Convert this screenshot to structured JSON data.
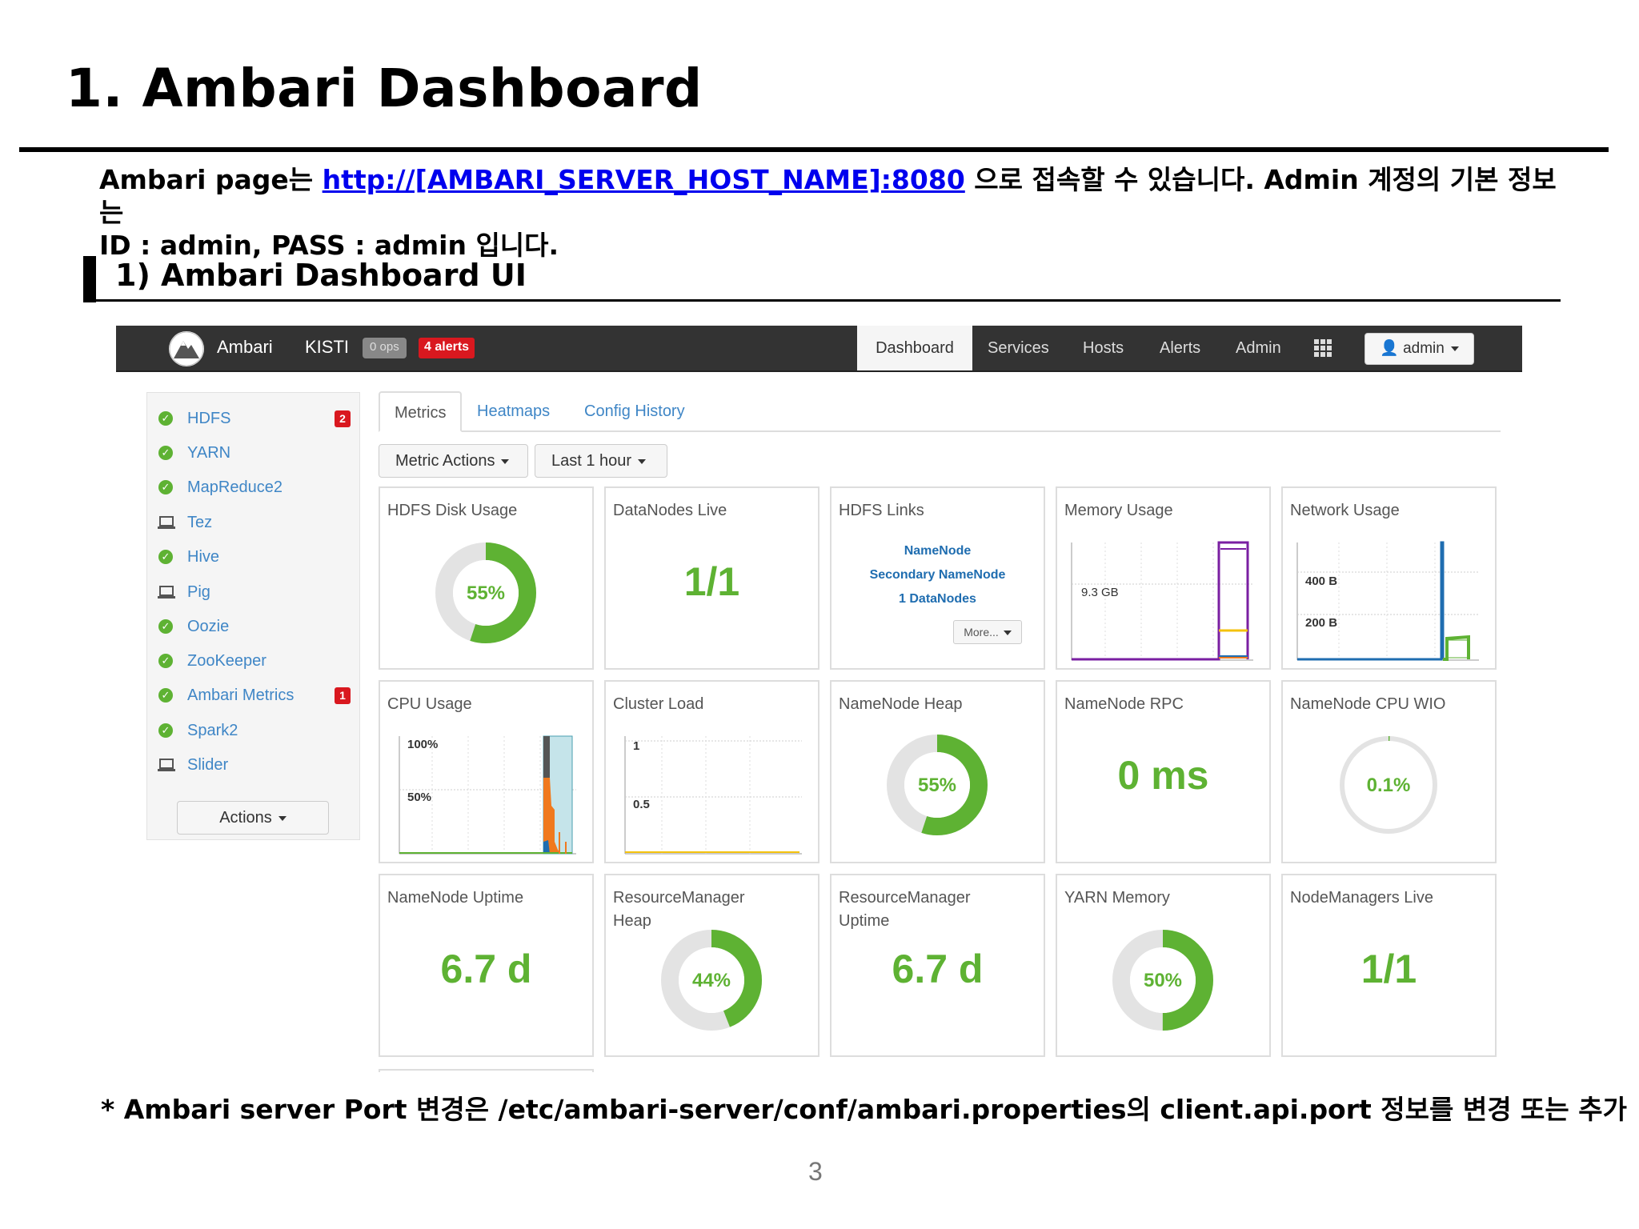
{
  "slide": {
    "title": "1. Ambari Dashboard",
    "intro_prefix": "Ambari page는 ",
    "intro_link": "http://[AMBARI_SERVER_HOST_NAME]:8080",
    "intro_suffix": " 으로 접속할 수 있습니다. Admin 계정의 기본 정보는",
    "intro_line2": "ID : admin, PASS : admin 입니다.",
    "section_title": "1) Ambari Dashboard UI",
    "footnote": "* Ambari server Port 변경은 /etc/ambari-server/conf/ambari.properties의 client.api.port 정보를 변경 또는 추가",
    "page_number": "3"
  },
  "navbar": {
    "brand": "Ambari",
    "cluster": "KISTI",
    "ops_badge": "0 ops",
    "alerts_badge": "4 alerts",
    "tabs": [
      "Dashboard",
      "Services",
      "Hosts",
      "Alerts",
      "Admin"
    ],
    "active_tab": "Dashboard",
    "user": "admin"
  },
  "sidebar": {
    "services": [
      {
        "name": "HDFS",
        "status": "ok",
        "alerts": "2"
      },
      {
        "name": "YARN",
        "status": "ok"
      },
      {
        "name": "MapReduce2",
        "status": "ok"
      },
      {
        "name": "Tez",
        "status": "client"
      },
      {
        "name": "Hive",
        "status": "ok"
      },
      {
        "name": "Pig",
        "status": "client"
      },
      {
        "name": "Oozie",
        "status": "ok"
      },
      {
        "name": "ZooKeeper",
        "status": "ok"
      },
      {
        "name": "Ambari Metrics",
        "status": "ok",
        "alerts": "1"
      },
      {
        "name": "Spark2",
        "status": "ok"
      },
      {
        "name": "Slider",
        "status": "client"
      }
    ],
    "actions_label": "Actions"
  },
  "content": {
    "tabs": [
      "Metrics",
      "Heatmaps",
      "Config History"
    ],
    "active_tab": "Metrics",
    "metric_actions_label": "Metric Actions",
    "time_range_label": "Last 1 hour"
  },
  "widgets": {
    "hdfs_disk_usage": {
      "title": "HDFS Disk Usage",
      "value_label": "55%",
      "percent": 55
    },
    "datanodes_live": {
      "title": "DataNodes Live",
      "value": "1/1"
    },
    "hdfs_links": {
      "title": "HDFS Links",
      "links": [
        "NameNode",
        "Secondary NameNode",
        "1 DataNodes"
      ],
      "more_label": "More..."
    },
    "memory_usage": {
      "title": "Memory Usage",
      "y_label": "9.3 GB"
    },
    "network_usage": {
      "title": "Network Usage",
      "y_labels": [
        "400 B",
        "200 B"
      ]
    },
    "cpu_usage": {
      "title": "CPU Usage",
      "y_labels": [
        "100%",
        "50%"
      ]
    },
    "cluster_load": {
      "title": "Cluster Load",
      "y_labels": [
        "1",
        "0.5"
      ]
    },
    "namenode_heap": {
      "title": "NameNode Heap",
      "value_label": "55%",
      "percent": 55
    },
    "namenode_rpc": {
      "title": "NameNode RPC",
      "value": "0 ms"
    },
    "namenode_cpu_wio": {
      "title": "NameNode CPU WIO",
      "value_label": "0.1%",
      "percent": 0.1
    },
    "namenode_uptime": {
      "title": "NameNode Uptime",
      "value": "6.7 d"
    },
    "resourcemanager_heap": {
      "title_line1": "ResourceManager",
      "title_line2": "Heap",
      "value_label": "44%",
      "percent": 44
    },
    "resourcemanager_uptime": {
      "title_line1": "ResourceManager",
      "title_line2": "Uptime",
      "value": "6.7 d"
    },
    "yarn_memory": {
      "title": "YARN Memory",
      "value_label": "50%",
      "percent": 50
    },
    "nodemanagers_live": {
      "title": "NodeManagers Live",
      "value": "1/1"
    }
  },
  "colors": {
    "accent_green": "#5eb233",
    "link_blue": "#3f86c6",
    "alert_red": "#d9181f",
    "navbar": "#333333"
  }
}
